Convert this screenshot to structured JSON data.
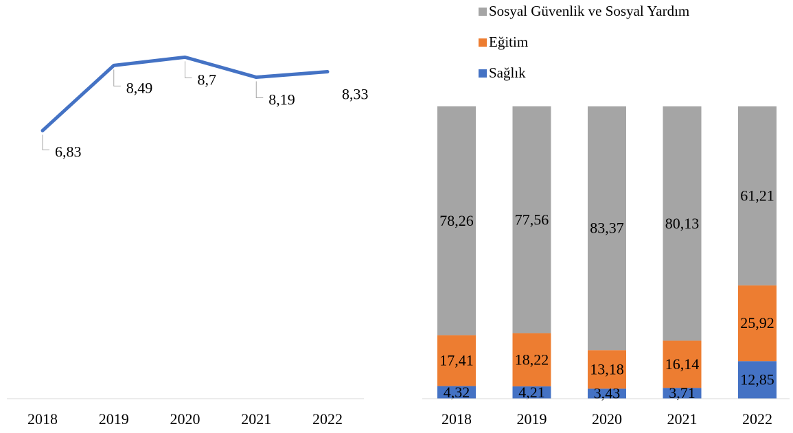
{
  "chart_data": [
    {
      "type": "line",
      "categories": [
        "2018",
        "2019",
        "2020",
        "2021",
        "2022"
      ],
      "values": [
        6.83,
        8.49,
        8.7,
        8.19,
        8.33
      ],
      "value_labels": [
        "6,83",
        "8,49",
        "8,7",
        "8,19",
        "8,33"
      ],
      "color": "#4472c4",
      "ylim": [
        0,
        10
      ]
    },
    {
      "type": "bar",
      "stacked": true,
      "categories": [
        "2018",
        "2019",
        "2020",
        "2021",
        "2022"
      ],
      "series": [
        {
          "name": "Sağlık",
          "color": "#4472c4",
          "values": [
            4.32,
            4.21,
            3.43,
            3.71,
            12.85
          ],
          "value_labels": [
            "4,32",
            "4,21",
            "3,43",
            "3,71",
            "12,85"
          ]
        },
        {
          "name": "Eğitim",
          "color": "#ed7d31",
          "values": [
            17.41,
            18.22,
            13.18,
            16.14,
            25.92
          ],
          "value_labels": [
            "17,41",
            "18,22",
            "13,18",
            "16,14",
            "25,92"
          ]
        },
        {
          "name": "Sosyal Güvenlik ve Sosyal Yardım",
          "color": "#a5a5a5",
          "values": [
            78.26,
            77.56,
            83.37,
            80.13,
            61.21
          ],
          "value_labels": [
            "78,26",
            "77,56",
            "83,37",
            "80,13",
            "61,21"
          ]
        }
      ],
      "ylim": [
        0,
        100
      ],
      "legend": "top"
    }
  ]
}
